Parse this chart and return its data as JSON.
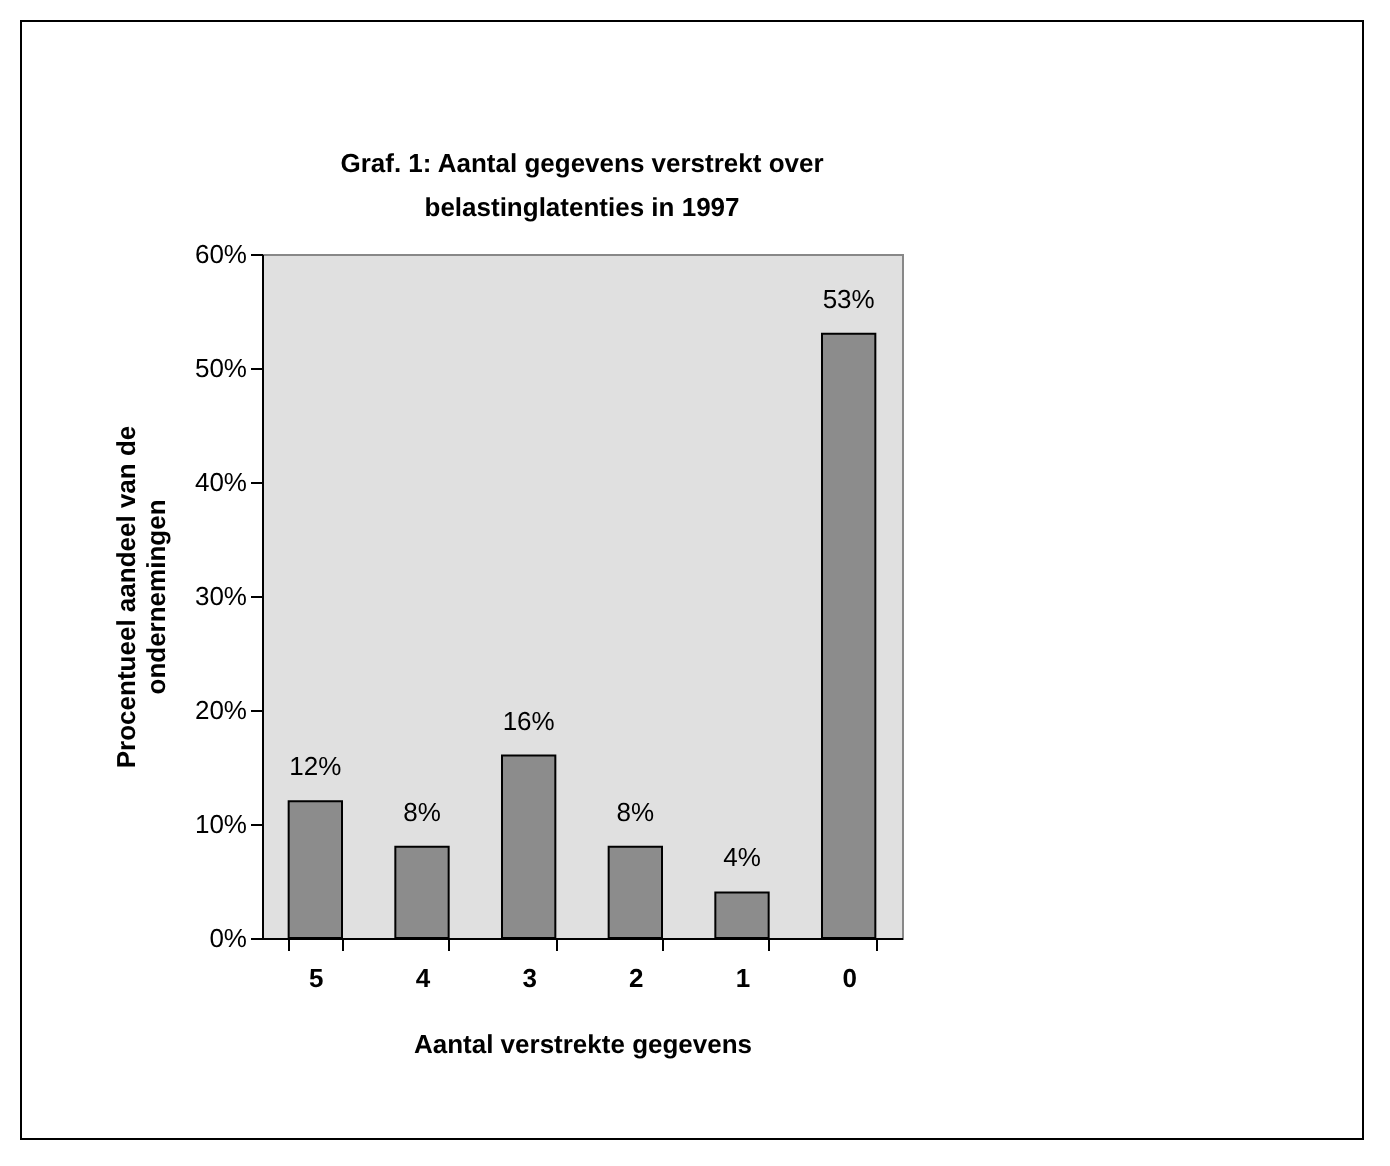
{
  "chart_data": {
    "type": "bar",
    "title": "Graf. 1: Aantal gegevens verstrekt over belastinglatenties in 1997",
    "xlabel": "Aantal verstrekte gegevens",
    "ylabel": "Procentueel aandeel van de ondernemingen",
    "categories": [
      "5",
      "4",
      "3",
      "2",
      "1",
      "0"
    ],
    "values": [
      12,
      8,
      16,
      8,
      4,
      53
    ],
    "value_labels": [
      "12%",
      "8%",
      "16%",
      "8%",
      "4%",
      "53%"
    ],
    "color": "#8c8c8c",
    "ylim": [
      0,
      60
    ],
    "yticks": [
      {
        "value": 0,
        "label": "0%"
      },
      {
        "value": 10,
        "label": "10%"
      },
      {
        "value": 20,
        "label": "20%"
      },
      {
        "value": 30,
        "label": "30%"
      },
      {
        "value": 40,
        "label": "40%"
      },
      {
        "value": 50,
        "label": "50%"
      },
      {
        "value": 60,
        "label": "60%"
      }
    ],
    "grid": false
  }
}
